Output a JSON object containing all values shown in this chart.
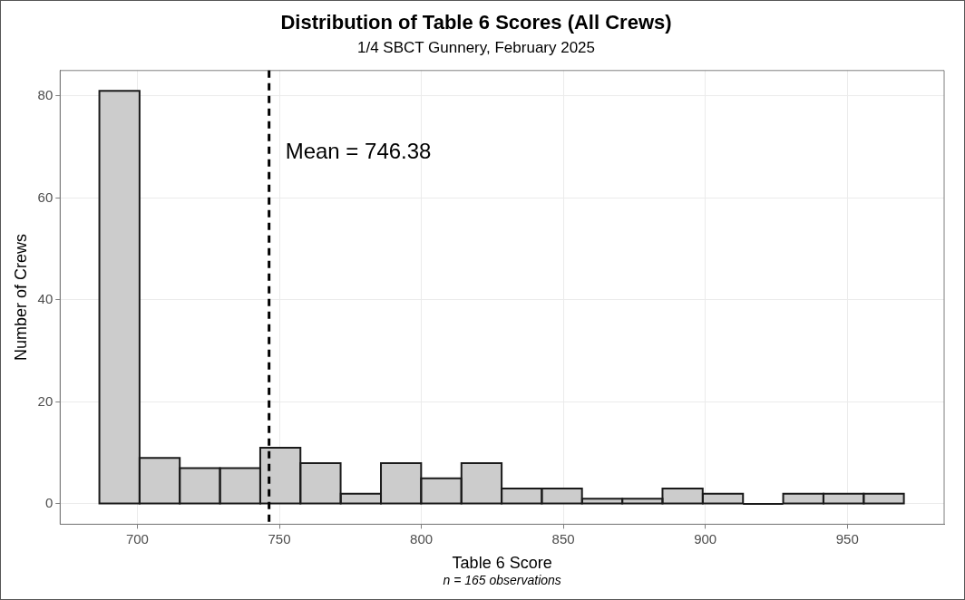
{
  "chart_data": {
    "type": "histogram",
    "title": "Distribution of Table 6 Scores (All Crews)",
    "subtitle": "1/4 SBCT Gunnery, February 2025",
    "xlabel": "Table 6 Score",
    "ylabel": "Number of Crews",
    "bins": [
      686.6,
      700.8,
      714.9,
      729.1,
      743.3,
      757.4,
      771.6,
      785.8,
      799.9,
      814.1,
      828.3,
      842.4,
      856.6,
      870.8,
      884.9,
      899.1,
      913.3,
      927.4,
      941.6,
      955.8,
      969.9
    ],
    "values": [
      81,
      9,
      7,
      7,
      11,
      8,
      2,
      8,
      5,
      8,
      3,
      3,
      1,
      1,
      3,
      2,
      0,
      2,
      2,
      2
    ],
    "color": "#cccccc",
    "xlim": [
      672.8,
      984.1
    ],
    "xticks": [
      700,
      750,
      800,
      850,
      900,
      950
    ],
    "ylim": [
      -4,
      85
    ],
    "yticks": [
      0,
      20,
      40,
      60,
      80
    ],
    "grid": true,
    "legend": false,
    "ref_lines": [
      {
        "axis": "x",
        "value": 746.38,
        "label": "Mean = 746.38",
        "line_style": "dashed",
        "color": "#000000"
      }
    ],
    "annotations": [
      "n = 165 observations"
    ]
  }
}
